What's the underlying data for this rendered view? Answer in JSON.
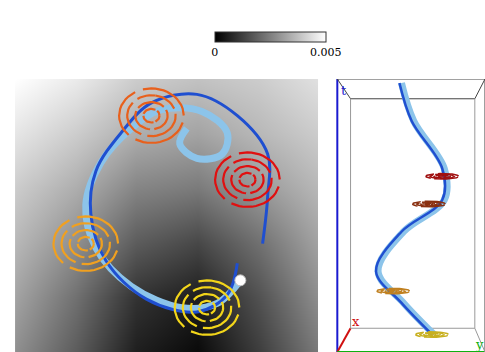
{
  "chart_data": {
    "type": "trajectory",
    "tick_labels": false,
    "xlim": [
      0,
      300
    ],
    "ylim": [
      0,
      320
    ],
    "colorbar": {
      "range": [
        0,
        0.005
      ],
      "ticks": [
        0,
        0.005
      ]
    },
    "field": {
      "x": [
        0,
        60,
        120,
        180,
        240,
        300
      ],
      "y": [
        0,
        64,
        128,
        192,
        256,
        320
      ],
      "z": [
        [
          0.0028,
          0.0018,
          0.0006,
          0.0002,
          0.0012,
          0.0024
        ],
        [
          0.0032,
          0.0022,
          0.001,
          0.0006,
          0.0016,
          0.0028
        ],
        [
          0.0036,
          0.0028,
          0.0018,
          0.0014,
          0.0022,
          0.0032
        ],
        [
          0.004,
          0.0034,
          0.0026,
          0.0024,
          0.003,
          0.0036
        ],
        [
          0.0045,
          0.004,
          0.0034,
          0.0032,
          0.0036,
          0.004
        ],
        [
          0.005,
          0.0046,
          0.004,
          0.0038,
          0.004,
          0.0044
        ]
      ]
    },
    "series": [
      {
        "color": "#8cc4ea",
        "x": [
          223,
          200,
          165,
          115,
          80,
          70,
          85,
          115,
          145,
          185,
          210,
          205,
          180,
          163,
          170
        ],
        "y": [
          84,
          57,
          52,
          77,
          122,
          172,
          222,
          262,
          284,
          282,
          257,
          232,
          227,
          244,
          262
        ]
      },
      {
        "color": "#1f4fd0",
        "x": [
          220,
          210,
          180,
          130,
          90,
          75,
          80,
          105,
          135,
          180,
          220,
          250,
          250,
          245
        ],
        "y": [
          104,
          67,
          47,
          62,
          107,
          162,
          212,
          257,
          292,
          302,
          277,
          232,
          182,
          127
        ]
      }
    ],
    "start": {
      "x": 223,
      "y": 84,
      "color": "#ffffff"
    },
    "vortices": [
      {
        "x": 190,
        "y": 52,
        "color": "#f2d51a",
        "radii": [
          8,
          16,
          24,
          32
        ]
      },
      {
        "x": 70,
        "y": 127,
        "color": "#f0a020",
        "radii": [
          8,
          16,
          24,
          32
        ]
      },
      {
        "x": 135,
        "y": 277,
        "color": "#e8601c",
        "radii": [
          8,
          16,
          24,
          32
        ]
      },
      {
        "x": 230,
        "y": 202,
        "color": "#e01010",
        "radii": [
          8,
          16,
          24,
          32
        ]
      }
    ],
    "side_view": {
      "xlim": [
        0,
        150
      ],
      "ylim": [
        0,
        345
      ],
      "series": [
        {
          "color": "#8cc4ea",
          "x": [
            68,
            80,
            110,
            110,
            70,
            45,
            70,
            100
          ],
          "y": [
            340,
            292,
            232,
            192,
            152,
            102,
            62,
            22
          ]
        },
        {
          "color": "#1f4fd0",
          "x": [
            66,
            78,
            108,
            108,
            68,
            43,
            68,
            98
          ],
          "y": [
            340,
            292,
            232,
            192,
            152,
            102,
            62,
            22
          ]
        }
      ],
      "vortices": [
        {
          "x": 108,
          "y": 222,
          "color": "#a01010",
          "radii": [
            4,
            8,
            12,
            16
          ]
        },
        {
          "x": 95,
          "y": 187,
          "color": "#8a3010",
          "radii": [
            4,
            8,
            12,
            16
          ]
        },
        {
          "x": 60,
          "y": 77,
          "color": "#c08020",
          "radii": [
            4,
            8,
            12,
            16
          ]
        },
        {
          "x": 98,
          "y": 22,
          "color": "#c8b020",
          "radii": [
            4,
            8,
            12,
            16
          ]
        }
      ],
      "axis_labels": [
        {
          "text": "t",
          "color": "#1a1ad0"
        },
        {
          "text": "x",
          "color": "#d01010"
        },
        {
          "text": "y",
          "color": "#10b010"
        }
      ]
    }
  }
}
